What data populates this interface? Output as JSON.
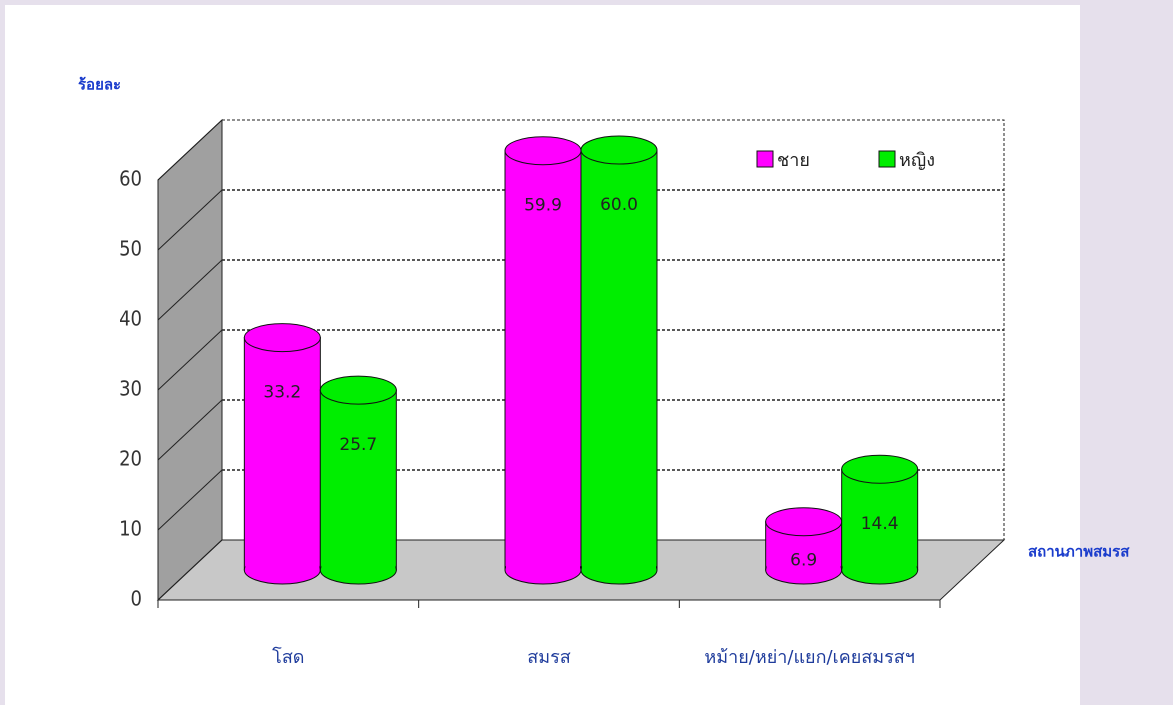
{
  "chart_data": {
    "type": "bar",
    "y_label": "ร้อยละ",
    "x_label": "สถานภาพสมรส",
    "categories": [
      "โสด",
      "สมรส",
      "หม้าย/หย่า/แยก/เคยสมรสฯ"
    ],
    "series": [
      {
        "name": "ชาย",
        "color": "#ff00ff",
        "values": [
          33.2,
          59.9,
          6.9
        ],
        "value_labels": [
          "33.2",
          "59.9",
          "6.9"
        ]
      },
      {
        "name": "หญิง",
        "color": "#00ee00",
        "values": [
          25.7,
          60.0,
          14.4
        ],
        "value_labels": [
          "25.7",
          "60.0",
          "14.4"
        ]
      }
    ],
    "ylim": [
      0,
      60
    ],
    "yticks": [
      0,
      10,
      20,
      30,
      40,
      50,
      60
    ],
    "grid": true,
    "legend": "top-right"
  }
}
